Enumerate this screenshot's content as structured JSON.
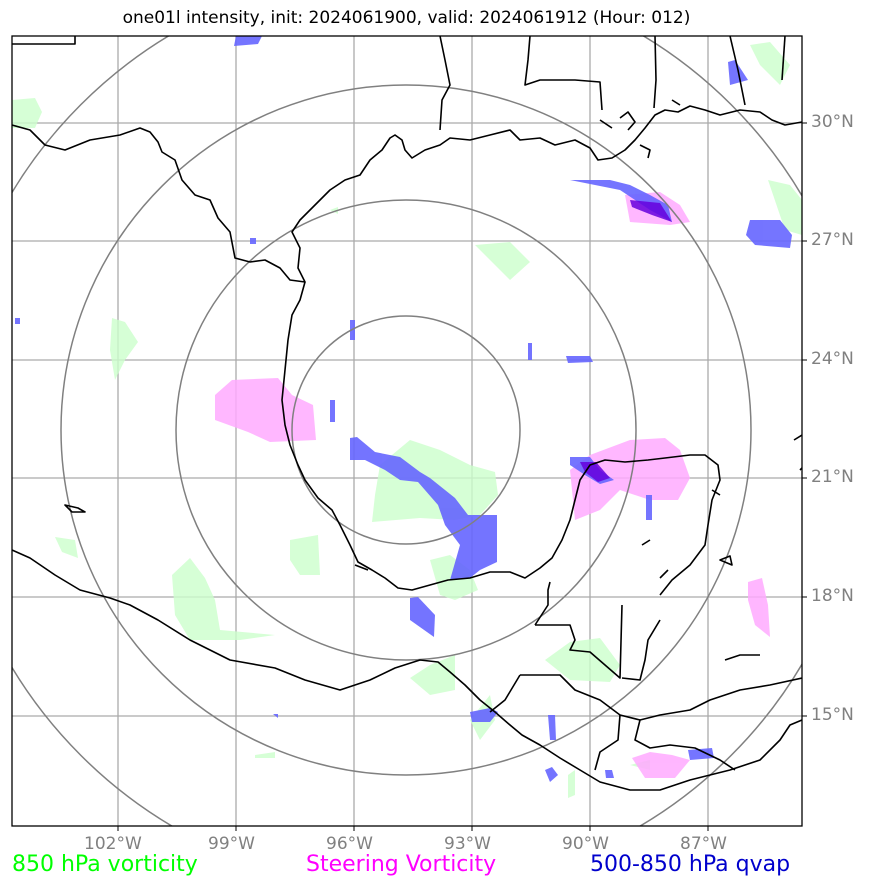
{
  "title": "one01l intensity, init: 2024061900, valid: 2024061912 (Hour: 012)",
  "lat_labels": [
    "30°N",
    "27°N",
    "24°N",
    "21°N",
    "18°N",
    "15°N"
  ],
  "lon_labels": [
    "102°W",
    "99°W",
    "96°W",
    "93°W",
    "90°W",
    "87°W"
  ],
  "legend": {
    "green": "850 hPa vorticity",
    "magenta": "Steering Vorticity",
    "blue": "500-850 hPa qvap"
  },
  "colors": {
    "green_field": "#ccffcc",
    "magenta_field": "#ffaaff",
    "blue_field": "#6666ff",
    "overlap": "#6600dd",
    "grid": "#aaaaaa",
    "rings": "#808080",
    "coast": "#000000"
  }
}
